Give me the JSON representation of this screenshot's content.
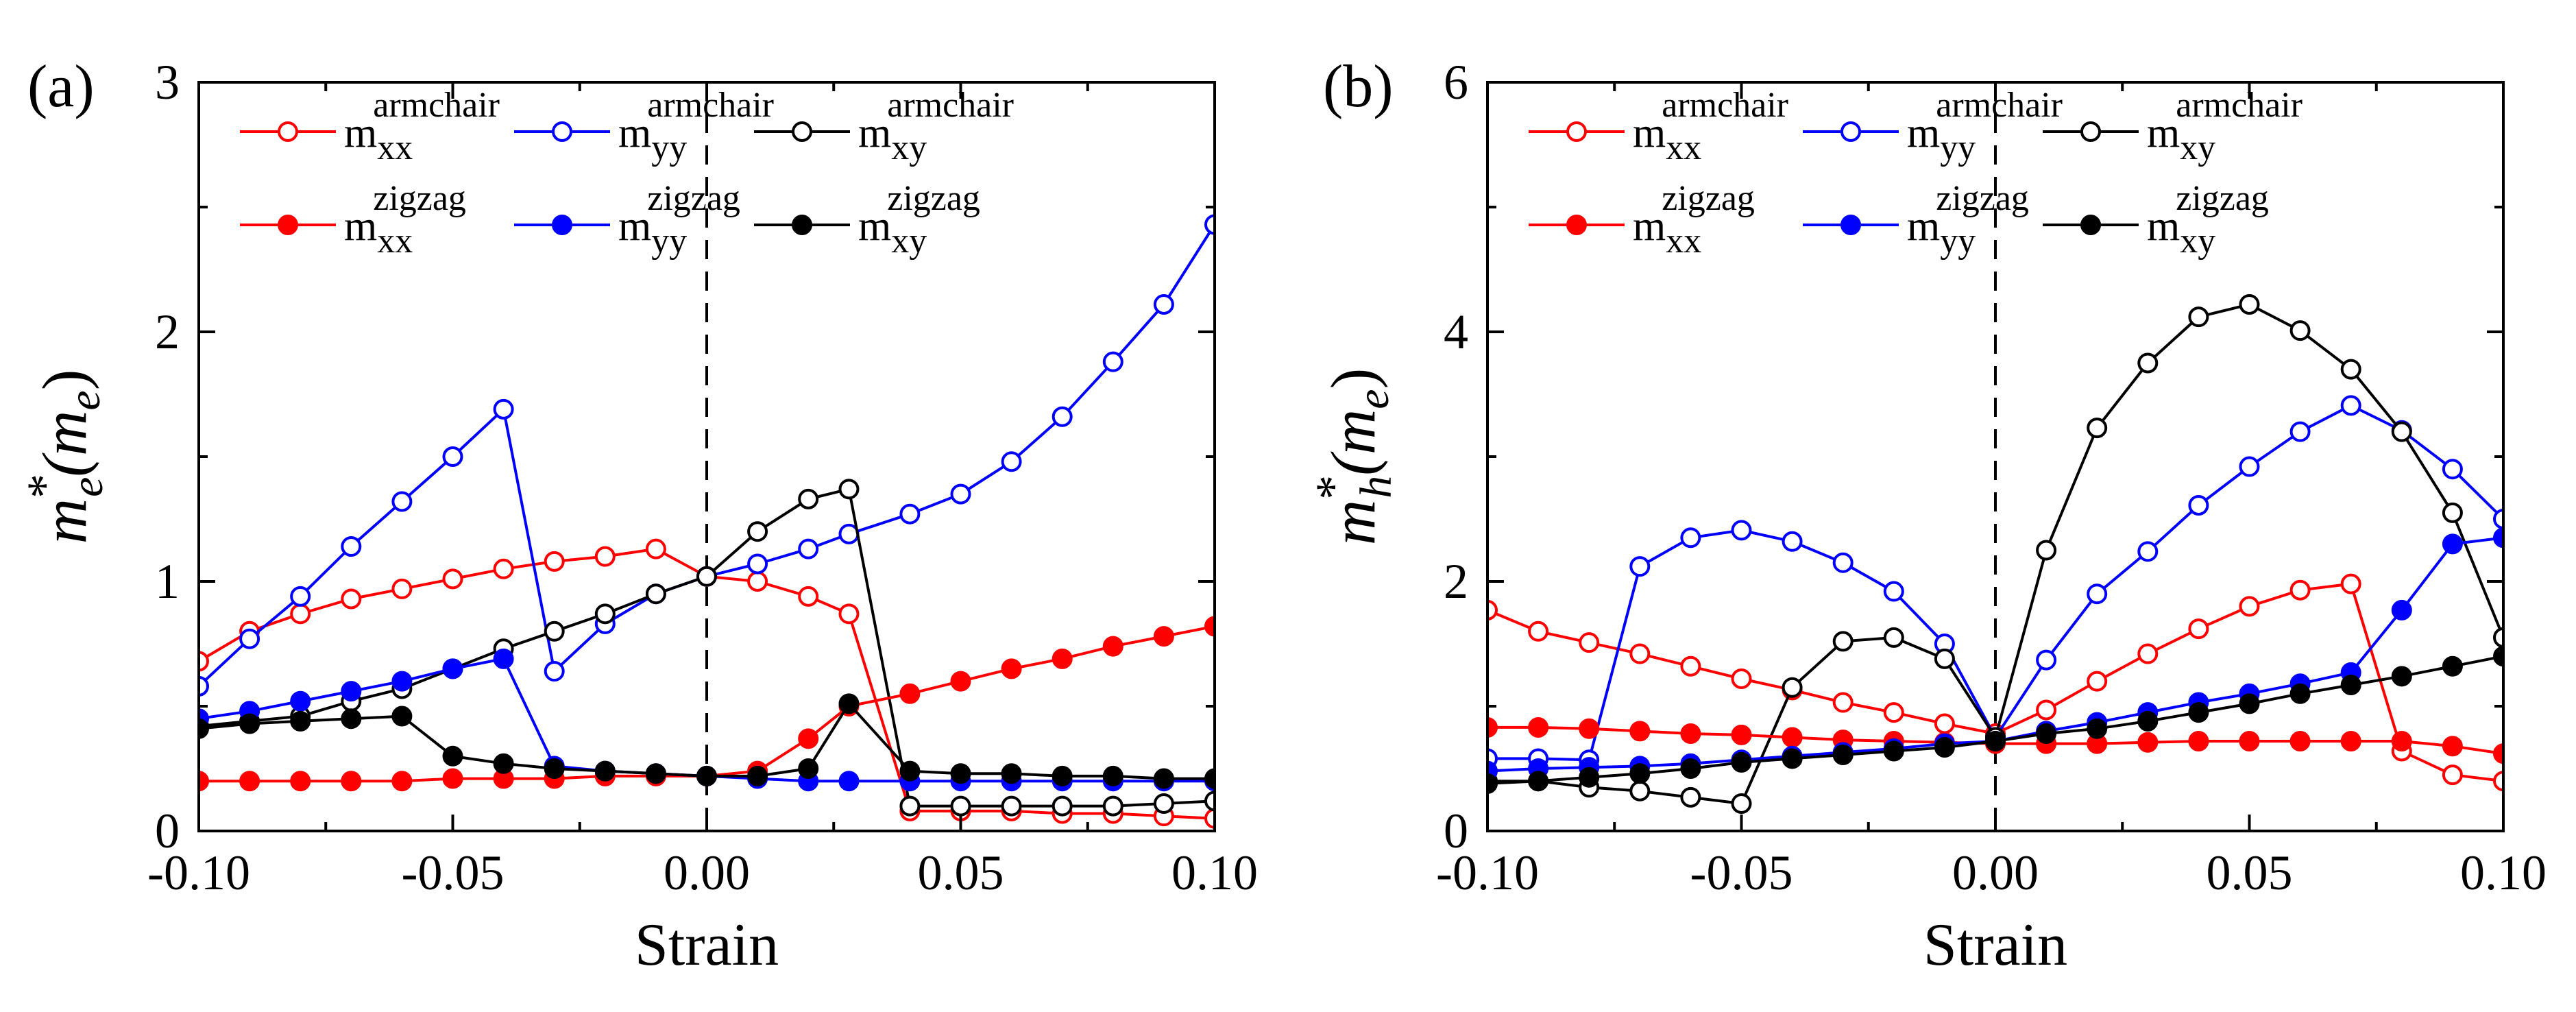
{
  "chart_data": [
    {
      "type": "line",
      "panel_label": "(a)",
      "xlabel": "Strain",
      "ylabel": {
        "base": "m",
        "sup": "*",
        "sub": "e",
        "unit": "(m",
        "unit_sub": "e",
        "close": ")"
      },
      "xlim": [
        -0.1,
        0.1
      ],
      "ylim": [
        0,
        3
      ],
      "xticks": [
        -0.1,
        -0.05,
        0.0,
        0.05,
        0.1
      ],
      "xtick_labels": [
        "-0.10",
        "-0.05",
        "0.00",
        "0.05",
        "0.10"
      ],
      "yticks": [
        0,
        1,
        2,
        3
      ],
      "ytick_labels": [
        "0",
        "1",
        "2",
        "3"
      ],
      "reference_line_x": 0.0,
      "series": [
        {
          "name": "m_xx^armchair",
          "label_base": "m",
          "label_sub": "xx",
          "label_sup": "armchair",
          "color": "#ff0000",
          "filled": false,
          "x": [
            -0.1,
            -0.09,
            -0.08,
            -0.07,
            -0.06,
            -0.05,
            -0.04,
            -0.03,
            -0.02,
            -0.01,
            0.0,
            0.01,
            0.02,
            0.028,
            0.04,
            0.05,
            0.06,
            0.07,
            0.08,
            0.09,
            0.1
          ],
          "y": [
            0.68,
            0.8,
            0.87,
            0.93,
            0.97,
            1.01,
            1.05,
            1.08,
            1.1,
            1.13,
            1.02,
            1.0,
            0.94,
            0.87,
            0.08,
            0.08,
            0.08,
            0.07,
            0.07,
            0.06,
            0.05
          ]
        },
        {
          "name": "m_yy^armchair",
          "label_base": "m",
          "label_sub": "yy",
          "label_sup": "armchair",
          "color": "#0000ff",
          "filled": false,
          "x": [
            -0.1,
            -0.09,
            -0.08,
            -0.07,
            -0.06,
            -0.05,
            -0.04,
            -0.03,
            -0.02,
            -0.01,
            0.0,
            0.01,
            0.02,
            0.028,
            0.04,
            0.05,
            0.06,
            0.07,
            0.08,
            0.09,
            0.1
          ],
          "y": [
            0.58,
            0.77,
            0.94,
            1.14,
            1.32,
            1.5,
            1.69,
            0.64,
            0.83,
            0.95,
            1.02,
            1.07,
            1.13,
            1.19,
            1.27,
            1.35,
            1.48,
            1.66,
            1.88,
            2.11,
            2.43
          ]
        },
        {
          "name": "m_xy^armchair",
          "label_base": "m",
          "label_sub": "xy",
          "label_sup": "armchair",
          "color": "#000000",
          "filled": false,
          "x": [
            -0.1,
            -0.09,
            -0.08,
            -0.07,
            -0.06,
            -0.05,
            -0.04,
            -0.03,
            -0.02,
            -0.01,
            0.0,
            0.01,
            0.02,
            0.028,
            0.04,
            0.05,
            0.06,
            0.07,
            0.08,
            0.09,
            0.1
          ],
          "y": [
            0.42,
            0.44,
            0.46,
            0.52,
            0.57,
            0.65,
            0.73,
            0.8,
            0.87,
            0.95,
            1.02,
            1.2,
            1.33,
            1.37,
            0.1,
            0.1,
            0.1,
            0.1,
            0.1,
            0.11,
            0.12
          ]
        },
        {
          "name": "m_xx^zigzag",
          "label_base": "m",
          "label_sub": "xx",
          "label_sup": "zigzag",
          "color": "#ff0000",
          "filled": true,
          "x": [
            -0.1,
            -0.09,
            -0.08,
            -0.07,
            -0.06,
            -0.05,
            -0.04,
            -0.03,
            -0.02,
            -0.01,
            0.0,
            0.01,
            0.02,
            0.028,
            0.04,
            0.05,
            0.06,
            0.07,
            0.08,
            0.09,
            0.1
          ],
          "y": [
            0.2,
            0.2,
            0.2,
            0.2,
            0.2,
            0.21,
            0.21,
            0.21,
            0.22,
            0.22,
            0.22,
            0.24,
            0.37,
            0.5,
            0.55,
            0.6,
            0.65,
            0.69,
            0.74,
            0.78,
            0.82
          ]
        },
        {
          "name": "m_yy^zigzag",
          "label_base": "m",
          "label_sub": "yy",
          "label_sup": "zigzag",
          "color": "#0000ff",
          "filled": true,
          "x": [
            -0.1,
            -0.09,
            -0.08,
            -0.07,
            -0.06,
            -0.05,
            -0.04,
            -0.03,
            -0.02,
            -0.01,
            0.0,
            0.01,
            0.02,
            0.028,
            0.04,
            0.05,
            0.06,
            0.07,
            0.08,
            0.09,
            0.1
          ],
          "y": [
            0.45,
            0.48,
            0.52,
            0.56,
            0.6,
            0.65,
            0.69,
            0.26,
            0.24,
            0.23,
            0.22,
            0.21,
            0.2,
            0.2,
            0.2,
            0.2,
            0.2,
            0.2,
            0.2,
            0.2,
            0.2
          ]
        },
        {
          "name": "m_xy^zigzag",
          "label_base": "m",
          "label_sub": "xy",
          "label_sup": "zigzag",
          "color": "#000000",
          "filled": true,
          "x": [
            -0.1,
            -0.09,
            -0.08,
            -0.07,
            -0.06,
            -0.05,
            -0.04,
            -0.03,
            -0.02,
            -0.01,
            0.0,
            0.01,
            0.02,
            0.028,
            0.04,
            0.05,
            0.06,
            0.07,
            0.08,
            0.09,
            0.1
          ],
          "y": [
            0.41,
            0.43,
            0.44,
            0.45,
            0.46,
            0.3,
            0.27,
            0.25,
            0.24,
            0.23,
            0.22,
            0.22,
            0.25,
            0.51,
            0.24,
            0.23,
            0.23,
            0.22,
            0.22,
            0.21,
            0.21
          ]
        }
      ]
    },
    {
      "type": "line",
      "panel_label": "(b)",
      "xlabel": "Strain",
      "ylabel": {
        "base": "m",
        "sup": "*",
        "sub": "h",
        "unit": "(m",
        "unit_sub": "e",
        "close": ")"
      },
      "xlim": [
        -0.1,
        0.1
      ],
      "ylim": [
        0,
        6
      ],
      "xticks": [
        -0.1,
        -0.05,
        0.0,
        0.05,
        0.1
      ],
      "xtick_labels": [
        "-0.10",
        "-0.05",
        "0.00",
        "0.05",
        "0.10"
      ],
      "yticks": [
        0,
        2,
        4,
        6
      ],
      "ytick_labels": [
        "0",
        "2",
        "4",
        "6"
      ],
      "reference_line_x": 0.0,
      "series": [
        {
          "name": "m_xx^armchair",
          "label_base": "m",
          "label_sub": "xx",
          "label_sup": "armchair",
          "color": "#ff0000",
          "filled": false,
          "x": [
            -0.1,
            -0.09,
            -0.08,
            -0.07,
            -0.06,
            -0.05,
            -0.04,
            -0.03,
            -0.02,
            -0.01,
            0.0,
            0.01,
            0.02,
            0.03,
            0.04,
            0.05,
            0.06,
            0.07,
            0.08,
            0.09,
            0.1
          ],
          "y": [
            1.77,
            1.6,
            1.51,
            1.42,
            1.32,
            1.22,
            1.13,
            1.03,
            0.95,
            0.86,
            0.78,
            0.97,
            1.2,
            1.42,
            1.62,
            1.8,
            1.93,
            1.98,
            0.64,
            0.45,
            0.4
          ]
        },
        {
          "name": "m_yy^armchair",
          "label_base": "m",
          "label_sub": "yy",
          "label_sup": "armchair",
          "color": "#0000ff",
          "filled": false,
          "x": [
            -0.1,
            -0.09,
            -0.08,
            -0.07,
            -0.06,
            -0.05,
            -0.04,
            -0.03,
            -0.02,
            -0.01,
            0.0,
            0.01,
            0.02,
            0.03,
            0.04,
            0.05,
            0.06,
            0.07,
            0.08,
            0.09,
            0.1
          ],
          "y": [
            0.58,
            0.58,
            0.57,
            2.12,
            2.35,
            2.41,
            2.32,
            2.15,
            1.92,
            1.5,
            0.75,
            1.37,
            1.9,
            2.24,
            2.61,
            2.92,
            3.2,
            3.41,
            3.21,
            2.9,
            2.5
          ]
        },
        {
          "name": "m_xy^armchair",
          "label_base": "m",
          "label_sub": "xy",
          "label_sup": "armchair",
          "color": "#000000",
          "filled": false,
          "x": [
            -0.1,
            -0.09,
            -0.08,
            -0.07,
            -0.06,
            -0.05,
            -0.04,
            -0.03,
            -0.02,
            -0.01,
            0.0,
            0.01,
            0.02,
            0.03,
            0.04,
            0.05,
            0.06,
            0.07,
            0.08,
            0.09,
            0.1
          ],
          "y": [
            0.4,
            0.4,
            0.35,
            0.32,
            0.27,
            0.22,
            1.15,
            1.52,
            1.55,
            1.38,
            0.75,
            2.25,
            3.23,
            3.75,
            4.12,
            4.22,
            4.01,
            3.7,
            3.2,
            2.55,
            1.55
          ]
        },
        {
          "name": "m_xx^zigzag",
          "label_base": "m",
          "label_sub": "xx",
          "label_sup": "zigzag",
          "color": "#ff0000",
          "filled": true,
          "x": [
            -0.1,
            -0.09,
            -0.08,
            -0.07,
            -0.06,
            -0.05,
            -0.04,
            -0.03,
            -0.02,
            -0.01,
            0.0,
            0.01,
            0.02,
            0.03,
            0.04,
            0.05,
            0.06,
            0.07,
            0.08,
            0.09,
            0.1
          ],
          "y": [
            0.83,
            0.83,
            0.82,
            0.8,
            0.78,
            0.77,
            0.75,
            0.73,
            0.72,
            0.71,
            0.7,
            0.7,
            0.7,
            0.71,
            0.72,
            0.72,
            0.72,
            0.72,
            0.72,
            0.68,
            0.62
          ]
        },
        {
          "name": "m_yy^zigzag",
          "label_base": "m",
          "label_sub": "yy",
          "label_sup": "zigzag",
          "color": "#0000ff",
          "filled": true,
          "x": [
            -0.1,
            -0.09,
            -0.08,
            -0.07,
            -0.06,
            -0.05,
            -0.04,
            -0.03,
            -0.02,
            -0.01,
            0.0,
            0.01,
            0.02,
            0.03,
            0.04,
            0.05,
            0.06,
            0.07,
            0.08,
            0.09,
            0.1
          ],
          "y": [
            0.48,
            0.5,
            0.51,
            0.52,
            0.54,
            0.57,
            0.6,
            0.63,
            0.66,
            0.7,
            0.72,
            0.8,
            0.87,
            0.95,
            1.03,
            1.1,
            1.18,
            1.27,
            1.77,
            2.3,
            2.35
          ]
        },
        {
          "name": "m_xy^zigzag",
          "label_base": "m",
          "label_sub": "xy",
          "label_sup": "zigzag",
          "color": "#000000",
          "filled": true,
          "x": [
            -0.1,
            -0.09,
            -0.08,
            -0.07,
            -0.06,
            -0.05,
            -0.04,
            -0.03,
            -0.02,
            -0.01,
            0.0,
            0.01,
            0.02,
            0.03,
            0.04,
            0.05,
            0.06,
            0.07,
            0.08,
            0.09,
            0.1
          ],
          "y": [
            0.38,
            0.4,
            0.43,
            0.46,
            0.5,
            0.55,
            0.58,
            0.61,
            0.64,
            0.67,
            0.72,
            0.78,
            0.82,
            0.88,
            0.95,
            1.02,
            1.1,
            1.17,
            1.24,
            1.32,
            1.4
          ]
        }
      ]
    }
  ]
}
